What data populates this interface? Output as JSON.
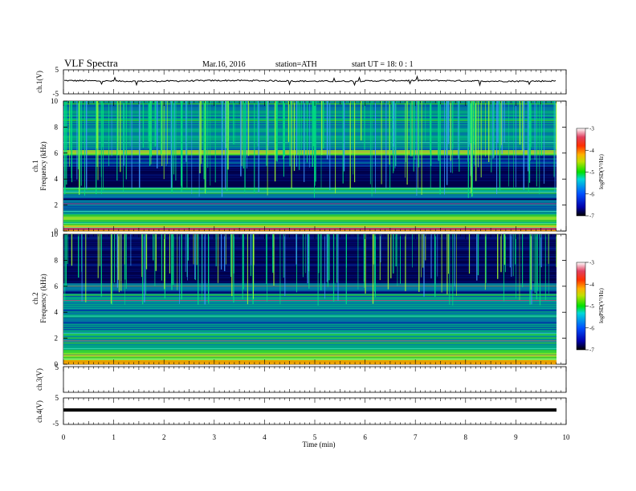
{
  "header": {
    "title": "VLF  Spectra",
    "date": "Mar.16, 2016",
    "station": "station=ATH",
    "start": "start  UT =   18: 0  : 1"
  },
  "chart_data": [
    {
      "type": "line",
      "panel": "ch1-waveform",
      "ylabel": "ch.1(V)",
      "ylim": [
        -5,
        5
      ],
      "yticks": [
        "5",
        "-5"
      ],
      "xlim": [
        0,
        10
      ],
      "series": [
        {
          "approx_level_V": 0.4,
          "noise_V": 0.3
        }
      ]
    },
    {
      "type": "heatmap",
      "panel": "ch1-spectrogram",
      "ylabel_top": "ch.1",
      "ylabel": "Frequency  (kHz)",
      "ylim": [
        0,
        10
      ],
      "yticks": [
        "0",
        "2",
        "4",
        "6",
        "8",
        "10"
      ],
      "xlim": [
        0,
        9.8
      ],
      "colorbar": {
        "label": "logPSD(V²/Hz)",
        "range": [
          -7,
          -3
        ],
        "ticks": [
          "-3",
          "-4",
          "-5",
          "-6",
          "-7"
        ]
      }
    },
    {
      "type": "heatmap",
      "panel": "ch2-spectrogram",
      "ylabel_top": "ch.2",
      "ylabel": "Frequency  (kHz)",
      "ylim": [
        0,
        10
      ],
      "yticks": [
        "0",
        "2",
        "4",
        "6",
        "8",
        "10"
      ],
      "xlim": [
        0,
        9.8
      ],
      "colorbar": {
        "label": "logPSD(V²/Hz)",
        "range": [
          -7,
          -3
        ],
        "ticks": [
          "-3",
          "-4",
          "-5",
          "-6",
          "-7"
        ]
      }
    },
    {
      "type": "line",
      "panel": "ch3-waveform",
      "ylabel": "ch.3(V)",
      "ylim": [
        -5,
        5
      ],
      "yticks": [
        "5"
      ],
      "series": []
    },
    {
      "type": "line",
      "panel": "ch4-waveform",
      "ylabel": "ch.4(V)",
      "ylim": [
        -5,
        5
      ],
      "yticks": [
        "5",
        "-5"
      ],
      "series": [
        {
          "approx_level_V": 0.0
        }
      ]
    }
  ],
  "xaxis": {
    "label": "Time  (min)",
    "ticks": [
      "0",
      "1",
      "2",
      "3",
      "4",
      "5",
      "6",
      "7",
      "8",
      "9",
      "10"
    ],
    "xlim": [
      0,
      10
    ]
  }
}
